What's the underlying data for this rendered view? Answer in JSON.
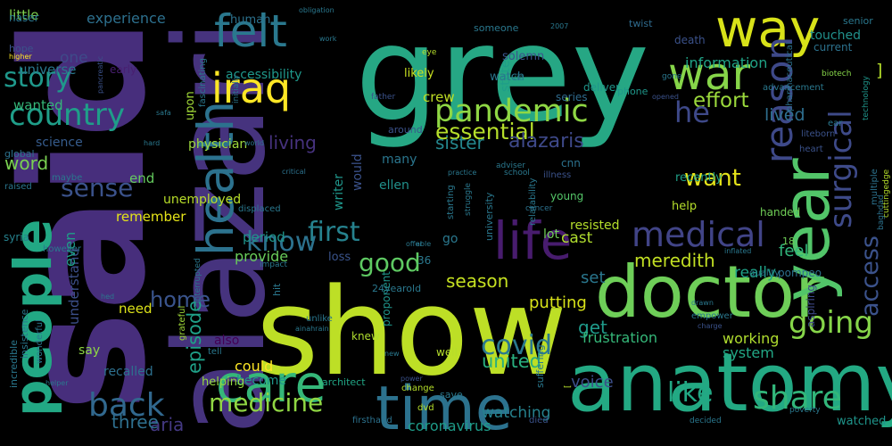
{
  "words": [
    {
      "text": "said",
      "color": "#472e7c"
    },
    {
      "text": "grey",
      "color": "#26a784"
    },
    {
      "text": "alazari",
      "color": "#46337e"
    },
    {
      "text": "show",
      "color": "#bddf26"
    },
    {
      "text": "anatomy",
      "color": "#23a983"
    },
    {
      "text": "doctor",
      "color": "#6ece58"
    },
    {
      "text": "year",
      "color": "#52c569"
    },
    {
      "text": "time",
      "color": "#2c728e"
    },
    {
      "text": "people",
      "color": "#22a884"
    },
    {
      "text": "care",
      "color": "#35b779"
    },
    {
      "text": "way",
      "color": "#d8e219"
    },
    {
      "text": "war",
      "color": "#86d549"
    },
    {
      "text": "iraq",
      "color": "#fde725"
    },
    {
      "text": "felt",
      "color": "#2a788e"
    },
    {
      "text": "health",
      "color": "#2c728e"
    },
    {
      "text": "life",
      "color": "#481c6e"
    },
    {
      "text": "pandemic",
      "color": "#8fd744"
    },
    {
      "text": "country",
      "color": "#1f9e89"
    },
    {
      "text": "medical",
      "color": "#414487"
    },
    {
      "text": "surgical",
      "color": "#3e4a89"
    },
    {
      "text": "reason",
      "color": "#3e4989"
    },
    {
      "text": "going",
      "color": "#86d549"
    },
    {
      "text": "access",
      "color": "#3b528b"
    },
    {
      "text": "covid",
      "color": "#2a788e"
    },
    {
      "text": "share",
      "color": "#32b67a"
    },
    {
      "text": "like",
      "color": "#22a884"
    },
    {
      "text": "back",
      "color": "#31688e"
    },
    {
      "text": "medicine",
      "color": "#90d743"
    },
    {
      "text": "story",
      "color": "#1f988b"
    },
    {
      "text": "sense",
      "color": "#3b528b"
    },
    {
      "text": "know",
      "color": "#2c728e"
    },
    {
      "text": "first",
      "color": "#26828e"
    },
    {
      "text": "essential",
      "color": "#b5de2b"
    },
    {
      "text": "effort",
      "color": "#9bd93c"
    },
    {
      "text": "want",
      "color": "#e5e419"
    },
    {
      "text": "good",
      "color": "#5ec962"
    },
    {
      "text": "he",
      "color": "#3e4989"
    },
    {
      "text": "sister",
      "color": "#24878e"
    },
    {
      "text": "alazaris",
      "color": "#3e4989"
    },
    {
      "text": "living",
      "color": "#46327e"
    },
    {
      "text": "word",
      "color": "#7ad151"
    },
    {
      "text": "lived",
      "color": "#2e6e8e"
    },
    {
      "text": "feel",
      "color": "#31b57b"
    },
    {
      "text": "meredith",
      "color": "#c2df23"
    },
    {
      "text": "season",
      "color": "#c5e021"
    },
    {
      "text": "home",
      "color": "#3a548c"
    },
    {
      "text": "episode",
      "color": "#1fa088"
    },
    {
      "text": "united",
      "color": "#29af7f"
    },
    {
      "text": "get",
      "color": "#1f9a8a"
    },
    {
      "text": "aria",
      "color": "#443983"
    },
    {
      "text": "three",
      "color": "#2e6f8e"
    },
    {
      "text": "voice",
      "color": "#3c4f8a"
    },
    {
      "text": "watching",
      "color": "#26828e"
    },
    {
      "text": "coronavirus",
      "color": "#1e9c89"
    },
    {
      "text": "cast",
      "color": "#b0dd2f"
    },
    {
      "text": "set",
      "color": "#2a778e"
    },
    {
      "text": "putting",
      "color": "#d8e219"
    },
    {
      "text": "really",
      "color": "#1fa187"
    },
    {
      "text": "working",
      "color": "#b0dd2f"
    },
    {
      "text": "system",
      "color": "#22a785"
    },
    {
      "text": "frustration",
      "color": "#35b779"
    },
    {
      "text": "information",
      "color": "#20a386"
    },
    {
      "text": "experience",
      "color": "#2d708e"
    },
    {
      "text": "little",
      "color": "#7fd34e"
    },
    {
      "text": "one",
      "color": "#3e4a89"
    },
    {
      "text": "universe",
      "color": "#2a788e"
    },
    {
      "text": "wanted",
      "color": "#35b779"
    },
    {
      "text": "science",
      "color": "#365c8d"
    },
    {
      "text": "end",
      "color": "#65cb5e"
    },
    {
      "text": "remember",
      "color": "#e5e419"
    },
    {
      "text": "unemployed",
      "color": "#b8de29"
    },
    {
      "text": "period",
      "color": "#1f958b"
    },
    {
      "text": "provide",
      "color": "#69cd5b"
    },
    {
      "text": "understand",
      "color": "#3c4f8a"
    },
    {
      "text": "need",
      "color": "#dde318"
    },
    {
      "text": "say",
      "color": "#8ed645"
    },
    {
      "text": "recalled",
      "color": "#2d708e"
    },
    {
      "text": "even",
      "color": "#1f9f88"
    },
    {
      "text": "crew",
      "color": "#c0df25"
    },
    {
      "text": "state",
      "color": "#1f9e89"
    },
    {
      "text": "physician",
      "color": "#9dd93b"
    },
    {
      "text": "accessibility",
      "color": "#1f988b"
    },
    {
      "text": "human",
      "color": "#2c728e"
    },
    {
      "text": "upon",
      "color": "#a2da37"
    },
    {
      "text": "early",
      "color": "#481f70"
    },
    {
      "text": "likely",
      "color": "#c8e020"
    },
    {
      "text": "solemn",
      "color": "#3a548c"
    },
    {
      "text": "watch",
      "color": "#2a778e"
    },
    {
      "text": "deliver",
      "color": "#1f968b"
    },
    {
      "text": "series",
      "color": "#2f6b8e"
    },
    {
      "text": "many",
      "color": "#2a768e"
    },
    {
      "text": "ellen",
      "color": "#21918c"
    },
    {
      "text": "would",
      "color": "#3b528b"
    },
    {
      "text": "writer",
      "color": "#1f968b"
    },
    {
      "text": "cnn",
      "color": "#2c728e"
    },
    {
      "text": "young",
      "color": "#54c568"
    },
    {
      "text": "recently",
      "color": "#1fa088"
    },
    {
      "text": "help",
      "color": "#b5de2b"
    },
    {
      "text": "resisted",
      "color": "#b5de2b"
    },
    {
      "text": "lot",
      "color": "#70cf57"
    },
    {
      "text": "go",
      "color": "#2a788e"
    },
    {
      "text": "loss",
      "color": "#3a548c"
    },
    {
      "text": "also",
      "color": "#440154"
    },
    {
      "text": "could",
      "color": "#fde725"
    },
    {
      "text": "become",
      "color": "#1f968b"
    },
    {
      "text": "helping",
      "color": "#95d840"
    },
    {
      "text": "architect",
      "color": "#21a685"
    },
    {
      "text": "well",
      "color": "#b5de2b"
    },
    {
      "text": "knew",
      "color": "#b0dd2f"
    },
    {
      "text": "pompeo",
      "color": "#2d708e"
    },
    {
      "text": "handed",
      "color": "#70cf57"
    },
    {
      "text": "touched",
      "color": "#21918c"
    },
    {
      "text": "current",
      "color": "#2c728e"
    },
    {
      "text": "senior",
      "color": "#2a788e"
    },
    {
      "text": "death",
      "color": "#3b528b"
    },
    {
      "text": "twist",
      "color": "#2f6b8e"
    },
    {
      "text": "naser",
      "color": "#2a778e"
    },
    {
      "text": "hope",
      "color": "#3b528b"
    },
    {
      "text": "higher",
      "color": "#fde725"
    },
    {
      "text": "watched",
      "color": "#1f958b"
    },
    {
      "text": "syria",
      "color": "#26828e"
    },
    {
      "text": "raised",
      "color": "#2a768e"
    },
    {
      "text": "global",
      "color": "#2c728e"
    },
    {
      "text": "maybe",
      "color": "#2a778e"
    },
    {
      "text": "incredible",
      "color": "#2a788e"
    },
    {
      "text": "insistence",
      "color": "#2a788e"
    },
    {
      "text": "wonderful",
      "color": "#2a788e"
    },
    {
      "text": "grateful",
      "color": "#a0da39"
    },
    {
      "text": "firsthand",
      "color": "#2c728e"
    },
    {
      "text": "died",
      "color": "#3b528b"
    },
    {
      "text": "dvd",
      "color": "#b5de2b"
    },
    {
      "text": "save",
      "color": "#2a788e"
    },
    {
      "text": "change",
      "color": "#b5de2b"
    },
    {
      "text": "proponent",
      "color": "#1f958b"
    },
    {
      "text": "24yearold",
      "color": "#2a788e"
    },
    {
      "text": "36",
      "color": "#2a788e"
    },
    {
      "text": "18",
      "color": "#6ece58"
    },
    {
      "text": "cancer",
      "color": "#2c728e"
    },
    {
      "text": "university",
      "color": "#2a788e"
    },
    {
      "text": "obligation",
      "color": "#2a788e"
    },
    {
      "text": "someone",
      "color": "#2a788e"
    },
    {
      "text": "2007",
      "color": "#2a788e"
    },
    {
      "text": "via",
      "color": "#26828e"
    },
    {
      "text": "phone",
      "color": "#1f988b"
    },
    {
      "text": "pharmaceutical",
      "color": "#2c728e"
    },
    {
      "text": "biotech",
      "color": "#86d549"
    },
    {
      "text": "technology",
      "color": "#1f968b"
    },
    {
      "text": "baghdad",
      "color": "#2c728e"
    },
    {
      "text": "cuttingedge",
      "color": "#b5de2b"
    },
    {
      "text": "multiple",
      "color": "#2c728e"
    },
    {
      "text": "liteborn",
      "color": "#3b528b"
    },
    {
      "text": "inflated",
      "color": "#2a788e"
    },
    {
      "text": "quality",
      "color": "#2a788e"
    },
    {
      "text": "drawn",
      "color": "#2a788e"
    },
    {
      "text": "charge",
      "color": "#3b528b"
    },
    {
      "text": "empower",
      "color": "#2a788e"
    },
    {
      "text": "aspiring",
      "color": "#3e4989"
    },
    {
      "text": "poverty",
      "color": "#2a788e"
    },
    {
      "text": "decided",
      "color": "#2a788e"
    },
    {
      "text": "suffering",
      "color": "#2a788e"
    },
    {
      "text": "impact",
      "color": "#2a788e"
    },
    {
      "text": "critical",
      "color": "#2c728e"
    },
    {
      "text": "world",
      "color": "#2c728e"
    },
    {
      "text": "hit",
      "color": "#2a788e"
    },
    {
      "text": "unlike",
      "color": "#2a788e"
    },
    {
      "text": "tell",
      "color": "#2a788e"
    },
    {
      "text": "hed",
      "color": "#2a788e"
    },
    {
      "text": "helper",
      "color": "#2a788e"
    },
    {
      "text": "however",
      "color": "#2a788e"
    },
    {
      "text": "hard",
      "color": "#2a788e"
    },
    {
      "text": "pancreatic",
      "color": "#3b528b"
    },
    {
      "text": "safa",
      "color": "#2a788e"
    },
    {
      "text": "fascinating",
      "color": "#2a788e"
    },
    {
      "text": "initially",
      "color": "#2a788e"
    },
    {
      "text": "work",
      "color": "#2a788e"
    },
    {
      "text": "eye",
      "color": "#b5de2b"
    },
    {
      "text": "father",
      "color": "#3b528b"
    },
    {
      "text": "around",
      "color": "#3b528b"
    },
    {
      "text": "opened",
      "color": "#3b528b"
    },
    {
      "text": "gone",
      "color": "#2a788e"
    },
    {
      "text": "advancement",
      "color": "#2a788e"
    },
    {
      "text": "ear",
      "color": "#2a788e"
    },
    {
      "text": "heart",
      "color": "#3b528b"
    },
    {
      "text": "school",
      "color": "#2a788e"
    },
    {
      "text": "illness",
      "color": "#3b528b"
    },
    {
      "text": "practice",
      "color": "#2a788e"
    },
    {
      "text": "adviser",
      "color": "#2a788e"
    },
    {
      "text": "starting",
      "color": "#2a788e"
    },
    {
      "text": "struggle",
      "color": "#2a788e"
    },
    {
      "text": "relatability",
      "color": "#2a788e"
    },
    {
      "text": "displaced",
      "color": "#2a788e"
    },
    {
      "text": "able",
      "color": "#2a788e"
    },
    {
      "text": "offer",
      "color": "#2a788e"
    },
    {
      "text": "interrupted",
      "color": "#2a788e"
    },
    {
      "text": "new",
      "color": "#2a788e"
    },
    {
      "text": "ainahrain",
      "color": "#2a788e"
    },
    {
      "text": "power",
      "color": "#3b528b"
    },
    {
      "text": "[",
      "color": "#b5de2b"
    },
    {
      "text": "]",
      "color": "#b5de2b"
    }
  ]
}
